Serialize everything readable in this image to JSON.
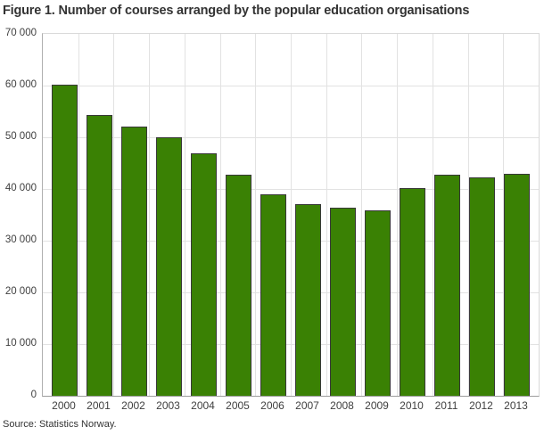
{
  "title": "Figure 1. Number of courses arranged by the popular education organisations",
  "source": "Source: Statistics Norway.",
  "chart_data": {
    "type": "bar",
    "title": "Figure 1. Number of courses arranged by the popular education organisations",
    "categories": [
      "2000",
      "2001",
      "2002",
      "2003",
      "2004",
      "2005",
      "2006",
      "2007",
      "2008",
      "2009",
      "2010",
      "2011",
      "2012",
      "2013"
    ],
    "values": [
      60100,
      54400,
      52100,
      50000,
      46900,
      42800,
      38900,
      37100,
      36400,
      35900,
      40200,
      42700,
      42200,
      43000
    ],
    "xlabel": "",
    "ylabel": "",
    "ylim": [
      0,
      70000
    ],
    "ytick_step": 10000,
    "ytick_labels": [
      "0",
      "10 000",
      "20 000",
      "30 000",
      "40 000",
      "50 000",
      "60 000",
      "70 000"
    ],
    "grid": true,
    "legend": "none",
    "bar_color": "#3a8104",
    "bar_border_color": "#383838",
    "gridline_color": "#e2e2e2",
    "source_note": "Source: Statistics Norway."
  }
}
